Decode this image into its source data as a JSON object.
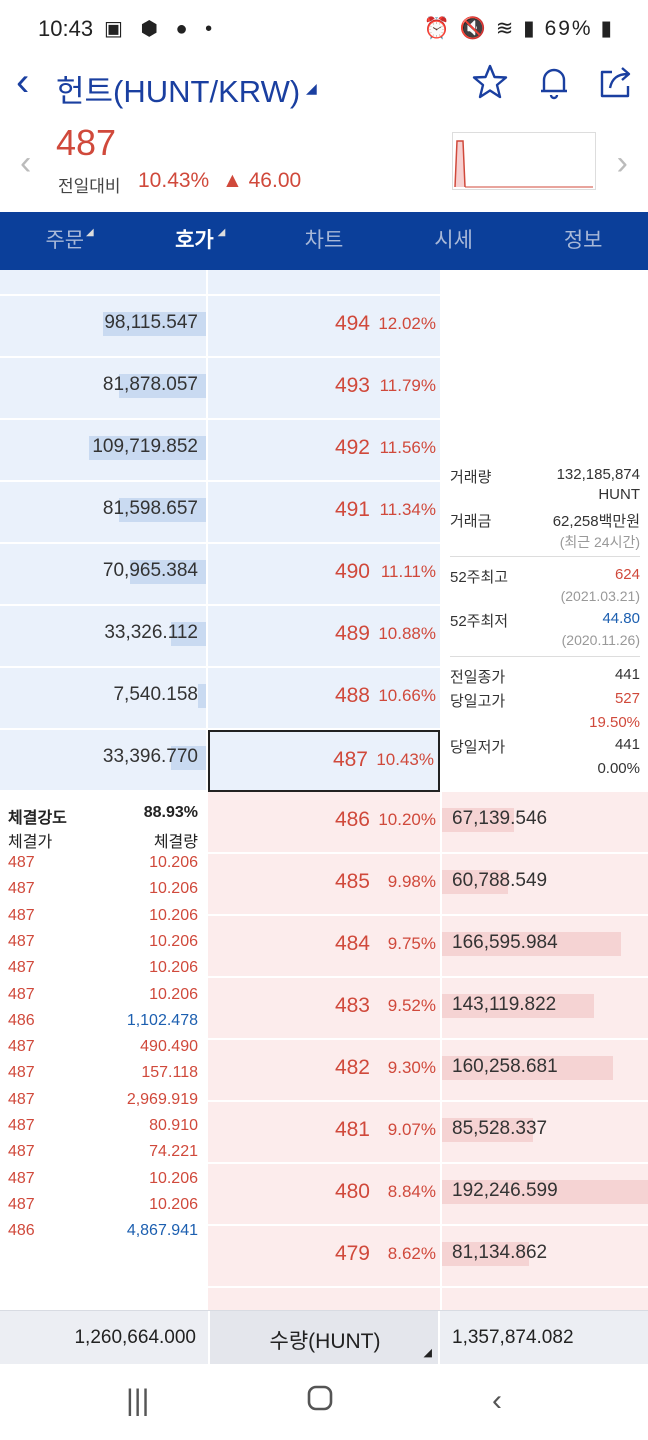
{
  "status_bar": {
    "time": "10:43",
    "battery": "69%"
  },
  "header": {
    "title": "헌트(HUNT/KRW)"
  },
  "summary": {
    "price": "487",
    "change_label": "전일대비",
    "change_pct": "10.43%",
    "change_abs": "46.00"
  },
  "tabs": [
    {
      "label": "주문",
      "active": false,
      "caret": true
    },
    {
      "label": "호가",
      "active": true,
      "caret": true
    },
    {
      "label": "차트",
      "active": false,
      "caret": false
    },
    {
      "label": "시세",
      "active": false,
      "caret": false
    },
    {
      "label": "정보",
      "active": false,
      "caret": false
    }
  ],
  "asks": [
    {
      "volume": "98,115.547",
      "price": "494",
      "pct": "12.02%",
      "bar": 0.5
    },
    {
      "volume": "81,878.057",
      "price": "493",
      "pct": "11.79%",
      "bar": 0.42
    },
    {
      "volume": "109,719.852",
      "price": "492",
      "pct": "11.56%",
      "bar": 0.57
    },
    {
      "volume": "81,598.657",
      "price": "491",
      "pct": "11.34%",
      "bar": 0.42
    },
    {
      "volume": "70,965.384",
      "price": "490",
      "pct": "11.11%",
      "bar": 0.37
    },
    {
      "volume": "33,326.112",
      "price": "489",
      "pct": "10.88%",
      "bar": 0.17
    },
    {
      "volume": "7,540.158",
      "price": "488",
      "pct": "10.66%",
      "bar": 0.04
    },
    {
      "volume": "33,396.770",
      "price": "487",
      "pct": "10.43%",
      "bar": 0.17,
      "current": true
    }
  ],
  "bids": [
    {
      "price": "486",
      "pct": "10.20%",
      "volume": "67,139.546",
      "bar": 0.35
    },
    {
      "price": "485",
      "pct": "9.98%",
      "volume": "60,788.549",
      "bar": 0.32
    },
    {
      "price": "484",
      "pct": "9.75%",
      "volume": "166,595.984",
      "bar": 0.87
    },
    {
      "price": "483",
      "pct": "9.52%",
      "volume": "143,119.822",
      "bar": 0.74
    },
    {
      "price": "482",
      "pct": "9.30%",
      "volume": "160,258.681",
      "bar": 0.83
    },
    {
      "price": "481",
      "pct": "9.07%",
      "volume": "85,528.337",
      "bar": 0.44
    },
    {
      "price": "480",
      "pct": "8.84%",
      "volume": "192,246.599",
      "bar": 1.0
    },
    {
      "price": "479",
      "pct": "8.62%",
      "volume": "81,134.862",
      "bar": 0.42
    }
  ],
  "info": {
    "volume_label": "거래량",
    "volume_value": "132,185,874",
    "volume_unit": "HUNT",
    "amount_label": "거래금",
    "amount_value": "62,258백만원",
    "amount_note": "(최근 24시간)",
    "high52_label": "52주최고",
    "high52_value": "624",
    "high52_date": "(2021.03.21)",
    "low52_label": "52주최저",
    "low52_value": "44.80",
    "low52_date": "(2020.11.26)",
    "prev_close_label": "전일종가",
    "prev_close_value": "441",
    "day_high_label": "당일고가",
    "day_high_value": "527",
    "day_high_pct": "19.50%",
    "day_low_label": "당일저가",
    "day_low_value": "441",
    "day_low_pct": "0.00%"
  },
  "trades": {
    "strength_label": "체결강도",
    "strength_value": "88.93%",
    "price_header": "체결가",
    "qty_header": "체결량",
    "rows": [
      {
        "price": "487",
        "qty": "10.206",
        "dir": "up"
      },
      {
        "price": "487",
        "qty": "10.206",
        "dir": "up"
      },
      {
        "price": "487",
        "qty": "10.206",
        "dir": "up"
      },
      {
        "price": "487",
        "qty": "10.206",
        "dir": "up"
      },
      {
        "price": "487",
        "qty": "10.206",
        "dir": "up"
      },
      {
        "price": "487",
        "qty": "10.206",
        "dir": "up"
      },
      {
        "price": "486",
        "qty": "1,102.478",
        "dir": "down"
      },
      {
        "price": "487",
        "qty": "490.490",
        "dir": "up"
      },
      {
        "price": "487",
        "qty": "157.118",
        "dir": "up"
      },
      {
        "price": "487",
        "qty": "2,969.919",
        "dir": "up"
      },
      {
        "price": "487",
        "qty": "80.910",
        "dir": "up"
      },
      {
        "price": "487",
        "qty": "74.221",
        "dir": "up"
      },
      {
        "price": "487",
        "qty": "10.206",
        "dir": "up"
      },
      {
        "price": "487",
        "qty": "10.206",
        "dir": "up"
      },
      {
        "price": "486",
        "qty": "4,867.941",
        "dir": "down"
      }
    ]
  },
  "footer": {
    "total_ask": "1,260,664.000",
    "unit_selector": "수량(HUNT)",
    "total_bid": "1,357,874.082"
  },
  "colors": {
    "up": "#d0493b",
    "down": "#1c5fb0",
    "brand": "#0b3f9a"
  }
}
